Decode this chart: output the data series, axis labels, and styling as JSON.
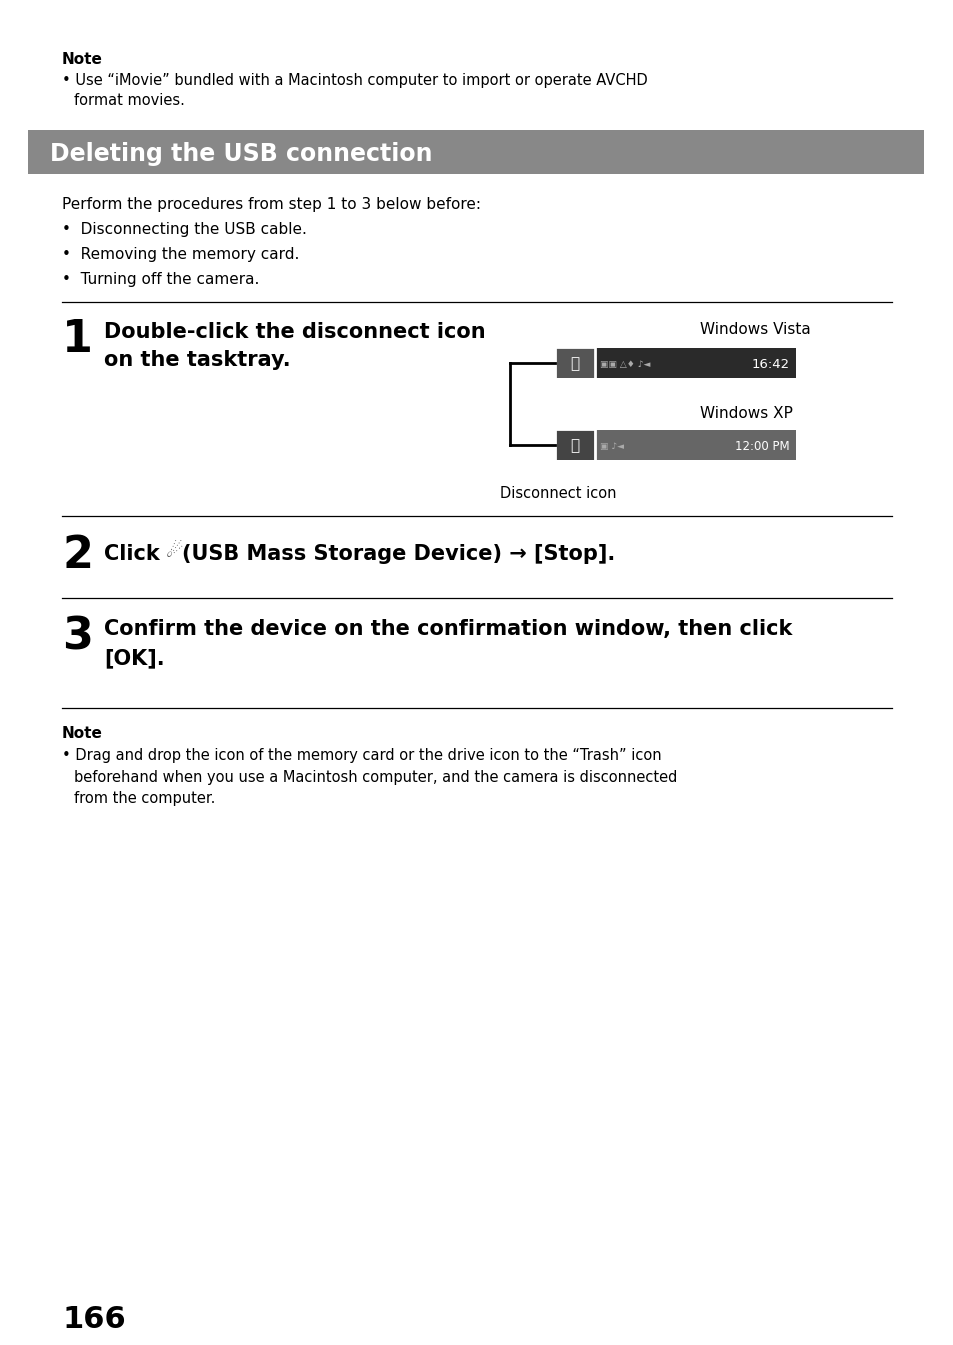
{
  "bg_color": "#ffffff",
  "page_number": "166",
  "note1_title": "Note",
  "note1_line1": "• Use “iMovie” bundled with a Macintosh computer to import or operate AVCHD",
  "note1_line2": "  format movies.",
  "section_title": "Deleting the USB connection",
  "section_bg": "#888888",
  "section_text_color": "#ffffff",
  "intro_text": "Perform the procedures from step 1 to 3 below before:",
  "bullet1": "•  Disconnecting the USB cable.",
  "bullet2": "•  Removing the memory card.",
  "bullet3": "•  Turning off the camera.",
  "step1_num": "1",
  "step1_line1": "Double-click the disconnect icon",
  "step1_line2": "on the tasktray.",
  "vista_label": "Windows Vista",
  "vista_time": "16:42",
  "xp_label": "Windows XP",
  "xp_time": "12:00 PM",
  "disconnect_caption": "Disconnect icon",
  "step2_num": "2",
  "step3_num": "3",
  "step3_line1": "Confirm the device on the confirmation window, then click",
  "step3_line2": "[OK].",
  "note2_title": "Note",
  "note2_line1": "• Drag and drop the icon of the memory card or the drive icon to the “Trash” icon",
  "note2_line2": "  beforehand when you use a Macintosh computer, and the camera is disconnected",
  "note2_line3": "  from the computer.",
  "ml": 62,
  "mr": 892,
  "pw": 954,
  "ph": 1345
}
